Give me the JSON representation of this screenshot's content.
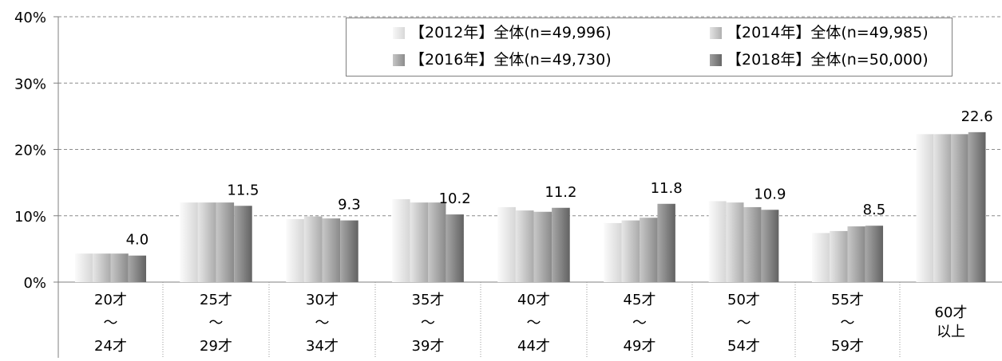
{
  "chart_data": {
    "type": "bar",
    "categories": [
      [
        "20才",
        "～",
        "24才"
      ],
      [
        "25才",
        "～",
        "29才"
      ],
      [
        "30才",
        "～",
        "34才"
      ],
      [
        "35才",
        "～",
        "39才"
      ],
      [
        "40才",
        "～",
        "44才"
      ],
      [
        "45才",
        "～",
        "49才"
      ],
      [
        "50才",
        "～",
        "54才"
      ],
      [
        "55才",
        "～",
        "59才"
      ],
      [
        "60才",
        "以上"
      ]
    ],
    "series": [
      {
        "name": "【2012年】全体(n=49,996)",
        "color": "#e6e6e6",
        "values": [
          4.3,
          12.0,
          9.5,
          12.5,
          11.3,
          8.9,
          12.2,
          7.4,
          22.3
        ]
      },
      {
        "name": "【2014年】全体(n=49,985)",
        "color": "#c4c4c4",
        "values": [
          4.3,
          12.0,
          9.9,
          12.0,
          10.8,
          9.3,
          12.0,
          7.7,
          22.3
        ]
      },
      {
        "name": "【2016年】全体(n=49,730)",
        "color": "#a2a2a2",
        "values": [
          4.3,
          12.0,
          9.6,
          12.0,
          10.6,
          9.7,
          11.3,
          8.4,
          22.3
        ]
      },
      {
        "name": "【2018年】全体(n=50,000)",
        "color": "#7e7e7e",
        "values": [
          4.0,
          11.5,
          9.3,
          10.2,
          11.2,
          11.8,
          10.9,
          8.5,
          22.6
        ]
      }
    ],
    "data_labels": [
      "4.0",
      "11.5",
      "9.3",
      "10.2",
      "11.2",
      "11.8",
      "10.9",
      "8.5",
      "22.6"
    ],
    "yticks": [
      "0%",
      "10%",
      "20%",
      "30%",
      "40%"
    ],
    "ylim": [
      0,
      40
    ],
    "grid": true,
    "legend_position": "top"
  }
}
